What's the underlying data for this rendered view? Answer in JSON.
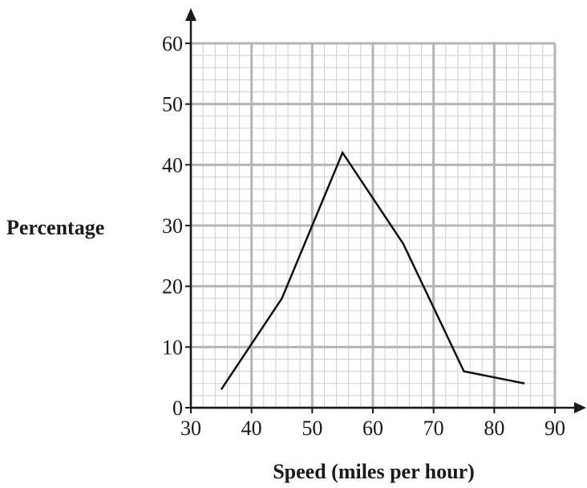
{
  "chart_data": {
    "type": "line",
    "title": "",
    "xlabel": "Speed (miles per hour)",
    "ylabel": "Percentage",
    "xlim": [
      30,
      90
    ],
    "ylim": [
      0,
      60
    ],
    "x_ticks": [
      "30",
      "40",
      "50",
      "60",
      "70",
      "80",
      "90"
    ],
    "y_ticks": [
      "0",
      "10",
      "20",
      "30",
      "40",
      "50",
      "60"
    ],
    "grid": true,
    "minor_grid_step": 2,
    "legend": "none",
    "series": [
      {
        "x": [
          35,
          45,
          55,
          65,
          75,
          85
        ],
        "y": [
          3,
          18,
          42,
          27,
          6,
          4
        ],
        "color": "#111111"
      }
    ],
    "colors": {
      "major_grid": "#b5b5b5",
      "minor_grid": "#cfcfcf",
      "axis": "#1a1a1a",
      "line": "#111111"
    }
  }
}
